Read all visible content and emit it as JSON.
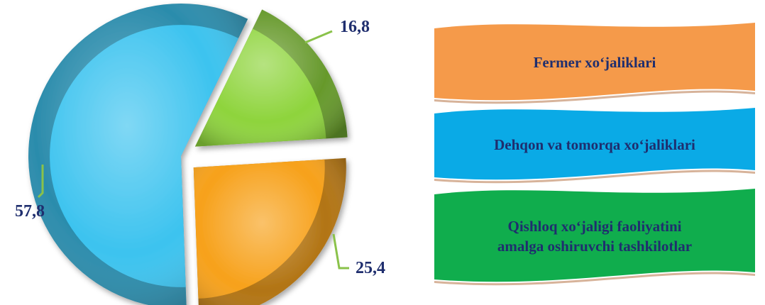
{
  "chart_data": {
    "type": "pie",
    "values": [
      16.8,
      25.4,
      57.8
    ],
    "labels": [
      "16,8",
      "25,4",
      "57,8"
    ],
    "colors": [
      "#8ed43c",
      "#f7a11a",
      "#3cc3ef"
    ],
    "legend": [
      {
        "label": "Fermer xo‘jaliklari",
        "color": "#f59a4a"
      },
      {
        "label": "Dehqon va tomorqa xo‘jaliklari",
        "color": "#0aaae6"
      },
      {
        "label": "Qishloq xo‘jaligi faoliyatini amalga oshiruvchi tashkilotlar",
        "lines": [
          "Qishloq xo‘jaligi faoliyatini",
          "amalga oshiruvchi tashkilotlar"
        ],
        "color": "#10ad4d"
      }
    ],
    "legend_placement": "right",
    "label_color": "#1f2e6e"
  }
}
